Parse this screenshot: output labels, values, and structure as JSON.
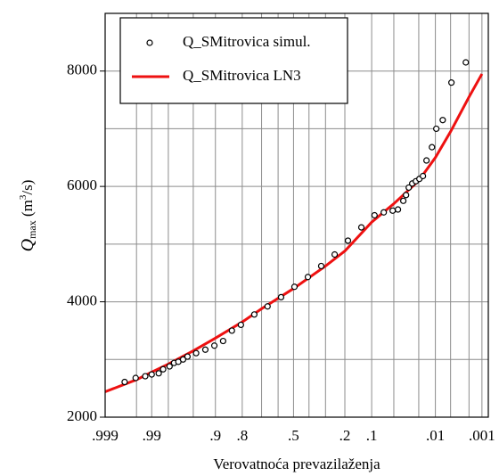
{
  "chart_data": {
    "type": "probability",
    "ylabel": [
      "Q",
      "max",
      " (m",
      "3",
      "/s)"
    ],
    "xlabel": "Verovatnoća prevazilaženja",
    "xscale": "normal-probability",
    "xlim": [
      0.999,
      0.0007
    ],
    "ylim": [
      2000,
      9000
    ],
    "xticks": [
      {
        "value": 0.999,
        "label": ".999"
      },
      {
        "value": 0.99,
        "label": ".99"
      },
      {
        "value": 0.9,
        "label": ".9"
      },
      {
        "value": 0.8,
        "label": ".8"
      },
      {
        "value": 0.5,
        "label": ".5"
      },
      {
        "value": 0.2,
        "label": ".2"
      },
      {
        "value": 0.1,
        "label": ".1"
      },
      {
        "value": 0.01,
        "label": ".01"
      },
      {
        "value": 0.001,
        "label": ".001"
      }
    ],
    "xgrid": [
      0.995,
      0.98,
      0.95,
      0.7,
      0.6,
      0.4,
      0.3,
      0.05,
      0.02,
      0.005,
      0.002
    ],
    "yticks": [
      2000,
      4000,
      6000,
      8000
    ],
    "ygrid": [
      3000,
      5000,
      7000
    ],
    "grid": true,
    "legend": "upper left",
    "series": [
      {
        "name": "Q_SMitrovica simul.",
        "kind": "markers",
        "color": "#000000",
        "x": [
          0.9972,
          0.9952,
          0.9925,
          0.99,
          0.9865,
          0.9838,
          0.979,
          0.975,
          0.9706,
          0.965,
          0.959,
          0.945,
          0.926,
          0.903,
          0.876,
          0.844,
          0.806,
          0.74,
          0.665,
          0.581,
          0.494,
          0.407,
          0.325,
          0.25,
          0.186,
          0.133,
          0.092,
          0.0695,
          0.052,
          0.0434,
          0.0359,
          0.0325,
          0.0294,
          0.0258,
          0.0224,
          0.0195,
          0.0169,
          0.0146,
          0.0116,
          0.0096,
          0.0072,
          0.0048,
          0.00236
        ],
        "values": [
          2610,
          2680,
          2710,
          2740,
          2760,
          2830,
          2880,
          2940,
          2960,
          3000,
          3050,
          3110,
          3170,
          3240,
          3320,
          3500,
          3600,
          3780,
          3920,
          4080,
          4260,
          4430,
          4620,
          4820,
          5060,
          5290,
          5500,
          5550,
          5580,
          5600,
          5750,
          5850,
          5980,
          6050,
          6090,
          6130,
          6180,
          6450,
          6680,
          7000,
          7150,
          7800,
          8150
        ]
      },
      {
        "name": "Q_SMitrovica LN3",
        "kind": "line",
        "color": "#ee1111",
        "x": [
          0.999,
          0.995,
          0.99,
          0.98,
          0.95,
          0.9,
          0.8,
          0.7,
          0.5,
          0.3,
          0.2,
          0.1,
          0.05,
          0.02,
          0.01,
          0.005,
          0.002,
          0.001
        ],
        "values": [
          2440,
          2650,
          2780,
          2920,
          3150,
          3370,
          3650,
          3880,
          4230,
          4620,
          4880,
          5380,
          5700,
          6100,
          6500,
          6950,
          7550,
          7950
        ]
      }
    ]
  }
}
